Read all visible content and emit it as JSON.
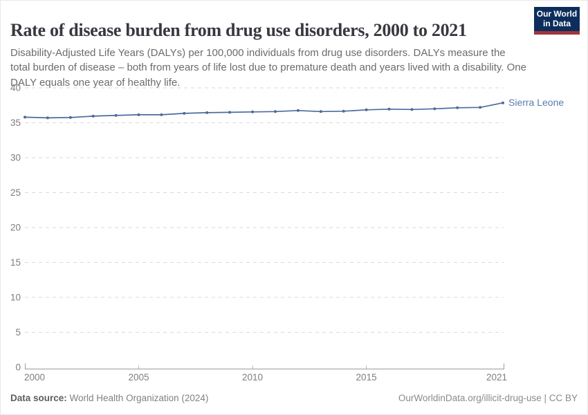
{
  "header": {
    "title": "Rate of disease burden from drug use disorders, 2000 to 2021",
    "subtitle": "Disability-Adjusted Life Years (DALYs) per 100,000 individuals from drug use disorders. DALYs measure the total burden of disease – both from years of life lost due to premature death and years lived with a disability. One DALY equals one year of healthy life."
  },
  "logo": {
    "line1": "Our World",
    "line2": "in Data",
    "bg_color": "#0d2e5c",
    "accent_color": "#a0353c"
  },
  "chart_data": {
    "type": "line",
    "title": "Rate of disease burden from drug use disorders, 2000 to 2021",
    "x": [
      2000,
      2001,
      2002,
      2003,
      2004,
      2005,
      2006,
      2007,
      2008,
      2009,
      2010,
      2011,
      2012,
      2013,
      2014,
      2015,
      2016,
      2017,
      2018,
      2019,
      2020,
      2021
    ],
    "series": [
      {
        "name": "Sierra Leone",
        "color": "#4C6A9C",
        "label_color": "#577CAE",
        "values": [
          35.8,
          35.7,
          35.75,
          35.95,
          36.05,
          36.15,
          36.15,
          36.35,
          36.45,
          36.5,
          36.55,
          36.6,
          36.75,
          36.6,
          36.65,
          36.85,
          36.95,
          36.9,
          37.0,
          37.15,
          37.2,
          37.85
        ]
      }
    ],
    "xlim": [
      2000,
      2021
    ],
    "ylim": [
      0,
      40
    ],
    "x_ticks": [
      2000,
      2005,
      2010,
      2015,
      2021
    ],
    "y_ticks": [
      0,
      5,
      10,
      15,
      20,
      25,
      30,
      35,
      40
    ],
    "grid": "horizontal-dashed",
    "grid_color": "#dadada",
    "axis_color": "#9a9a9a",
    "tick_label_color": "#7d7d7d",
    "legend_position": "end-of-line"
  },
  "footer": {
    "source_label": "Data source:",
    "source_value": " World Health Organization (2024)",
    "license": "OurWorldinData.org/illicit-drug-use | CC BY"
  }
}
